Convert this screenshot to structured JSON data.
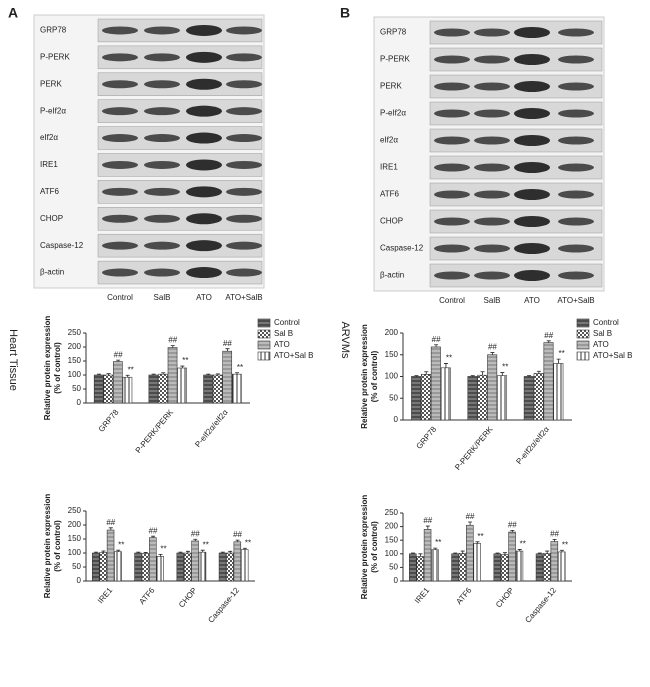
{
  "blots": [
    {
      "panel": "A",
      "side_label": "Heart Tissue",
      "rows": [
        "GRP78",
        "P-PERK",
        "PERK",
        "P-eIf2α",
        "eIf2α",
        "IRE1",
        "ATF6",
        "CHOP",
        "Caspase-12",
        "β-actin"
      ],
      "lanes": [
        "Control",
        "SalB",
        "ATO",
        "ATO+SalB"
      ]
    },
    {
      "panel": "B",
      "side_label": "ARVMs",
      "rows": [
        "GRP78",
        "P-PERK",
        "PERK",
        "P-eIf2α",
        "eIf2α",
        "IRE1",
        "ATF6",
        "CHOP",
        "Caspase-12",
        "β-actin"
      ],
      "lanes": [
        "Control",
        "SalB",
        "ATO",
        "ATO+SalB"
      ]
    }
  ],
  "chart_data": [
    {
      "type": "bar",
      "ylabel": [
        "Relative protein expression",
        "(% of control)"
      ],
      "categories": [
        "GRP78",
        "P-PERK/PERK",
        "P-eIf2α/eIf2α"
      ],
      "ylim": [
        0,
        250
      ],
      "yticks": [
        0,
        50,
        100,
        150,
        200,
        250
      ],
      "legend": "right",
      "series": [
        {
          "name": "Control",
          "color": "#777777",
          "pattern": "hstripe",
          "values": [
            100,
            100,
            100
          ],
          "errors": [
            3,
            3,
            3
          ]
        },
        {
          "name": "Sal B",
          "color": "#555555",
          "pattern": "check",
          "values": [
            100,
            103,
            100
          ],
          "errors": [
            5,
            5,
            4
          ]
        },
        {
          "name": "ATO",
          "color": "#bbbbbb",
          "pattern": "hline",
          "values": [
            148,
            198,
            185
          ],
          "errors": [
            5,
            7,
            9
          ],
          "significance": [
            "##",
            "##",
            "##"
          ]
        },
        {
          "name": "ATO+Sal B",
          "color": "#ffffff",
          "pattern": "vstripe",
          "values": [
            92,
            125,
            103
          ],
          "errors": [
            7,
            7,
            5
          ],
          "significance": [
            "**",
            "**",
            "**"
          ]
        }
      ]
    },
    {
      "type": "bar",
      "ylabel": [
        "Relative protein expression",
        "(% of control)"
      ],
      "categories": [
        "IRE1",
        "ATF6",
        "CHOP",
        "Caspase-12"
      ],
      "ylim": [
        0,
        250
      ],
      "yticks": [
        0,
        50,
        100,
        150,
        200,
        250
      ],
      "series": [
        {
          "color": "#777777",
          "pattern": "hstripe",
          "values": [
            100,
            100,
            100,
            100
          ],
          "errors": [
            3,
            3,
            3,
            3
          ]
        },
        {
          "color": "#555555",
          "pattern": "check",
          "values": [
            102,
            98,
            100,
            100
          ],
          "errors": [
            5,
            4,
            6,
            6
          ]
        },
        {
          "color": "#bbbbbb",
          "pattern": "hline",
          "values": [
            182,
            155,
            143,
            140
          ],
          "errors": [
            8,
            5,
            6,
            6
          ],
          "significance": [
            "##",
            "##",
            "##",
            "##"
          ]
        },
        {
          "color": "#ffffff",
          "pattern": "vstripe",
          "values": [
            105,
            88,
            103,
            112
          ],
          "errors": [
            5,
            7,
            7,
            5
          ],
          "significance": [
            "**",
            "**",
            "**",
            "**"
          ]
        }
      ]
    },
    {
      "type": "bar",
      "ylabel": [
        "Relative protein expression",
        "(% of control)"
      ],
      "categories": [
        "GRP78",
        "P-PERK/PERK",
        "P-eIf2α/eIf2α"
      ],
      "ylim": [
        0,
        200
      ],
      "yticks": [
        0,
        50,
        100,
        150,
        200
      ],
      "legend": "right",
      "series": [
        {
          "name": "Control",
          "color": "#777777",
          "pattern": "hstripe",
          "values": [
            100,
            100,
            100
          ],
          "errors": [
            2,
            2,
            2
          ]
        },
        {
          "name": "Sal B",
          "color": "#555555",
          "pattern": "check",
          "values": [
            105,
            103,
            107
          ],
          "errors": [
            6,
            8,
            5
          ]
        },
        {
          "name": "ATO",
          "color": "#bbbbbb",
          "pattern": "hline",
          "values": [
            168,
            150,
            178
          ],
          "errors": [
            5,
            5,
            4
          ],
          "significance": [
            "##",
            "##",
            "##"
          ]
        },
        {
          "name": "ATO+Sal B",
          "color": "#ffffff",
          "pattern": "vstripe",
          "values": [
            120,
            102,
            130
          ],
          "errors": [
            10,
            7,
            10
          ],
          "significance": [
            "**",
            "**",
            "**"
          ]
        }
      ]
    },
    {
      "type": "bar",
      "ylabel": [
        "Relative protein expression",
        "(% of control)"
      ],
      "categories": [
        "IRE1",
        "ATF6",
        "CHOP",
        "Caspase-12"
      ],
      "ylim": [
        0,
        250
      ],
      "yticks": [
        0,
        50,
        100,
        150,
        200,
        250
      ],
      "series": [
        {
          "color": "#777777",
          "pattern": "hstripe",
          "values": [
            100,
            100,
            100,
            100
          ],
          "errors": [
            3,
            3,
            3,
            3
          ]
        },
        {
          "color": "#555555",
          "pattern": "check",
          "values": [
            90,
            102,
            97,
            102
          ],
          "errors": [
            10,
            8,
            7,
            8
          ]
        },
        {
          "color": "#bbbbbb",
          "pattern": "hline",
          "values": [
            190,
            205,
            180,
            145
          ],
          "errors": [
            12,
            12,
            6,
            8
          ],
          "significance": [
            "##",
            "##",
            "##",
            "##"
          ]
        },
        {
          "color": "#ffffff",
          "pattern": "vstripe",
          "values": [
            115,
            138,
            110,
            107
          ],
          "errors": [
            6,
            6,
            6,
            6
          ],
          "significance": [
            "**",
            "**",
            "**",
            "**"
          ]
        }
      ]
    }
  ]
}
